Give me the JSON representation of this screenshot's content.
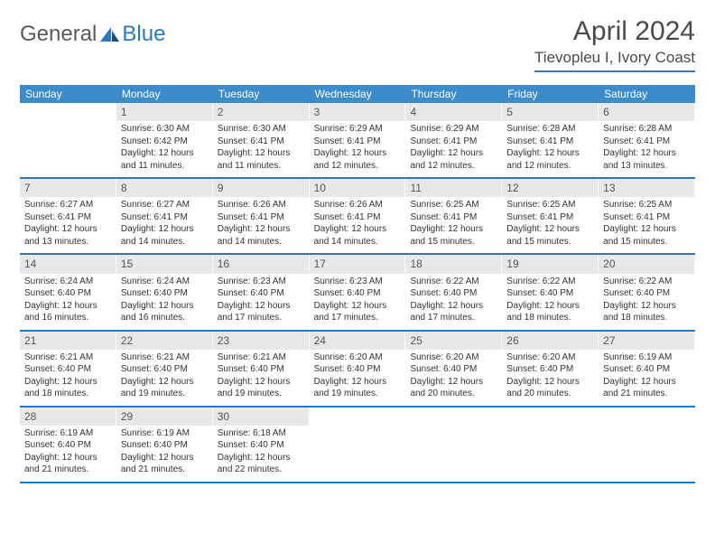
{
  "logo": {
    "general": "General",
    "blue": "Blue"
  },
  "title": "April 2024",
  "location": "Tievopleu I, Ivory Coast",
  "colors": {
    "header_bg": "#3c8ccc",
    "header_text": "#ffffff",
    "daynum_bg": "#e8e8e8",
    "rule": "#2a78bd",
    "text": "#333333"
  },
  "weekdays": [
    "Sunday",
    "Monday",
    "Tuesday",
    "Wednesday",
    "Thursday",
    "Friday",
    "Saturday"
  ],
  "weeks": [
    [
      null,
      {
        "n": "1",
        "sr": "Sunrise: 6:30 AM",
        "ss": "Sunset: 6:42 PM",
        "dl": "Daylight: 12 hours and 11 minutes."
      },
      {
        "n": "2",
        "sr": "Sunrise: 6:30 AM",
        "ss": "Sunset: 6:41 PM",
        "dl": "Daylight: 12 hours and 11 minutes."
      },
      {
        "n": "3",
        "sr": "Sunrise: 6:29 AM",
        "ss": "Sunset: 6:41 PM",
        "dl": "Daylight: 12 hours and 12 minutes."
      },
      {
        "n": "4",
        "sr": "Sunrise: 6:29 AM",
        "ss": "Sunset: 6:41 PM",
        "dl": "Daylight: 12 hours and 12 minutes."
      },
      {
        "n": "5",
        "sr": "Sunrise: 6:28 AM",
        "ss": "Sunset: 6:41 PM",
        "dl": "Daylight: 12 hours and 12 minutes."
      },
      {
        "n": "6",
        "sr": "Sunrise: 6:28 AM",
        "ss": "Sunset: 6:41 PM",
        "dl": "Daylight: 12 hours and 13 minutes."
      }
    ],
    [
      {
        "n": "7",
        "sr": "Sunrise: 6:27 AM",
        "ss": "Sunset: 6:41 PM",
        "dl": "Daylight: 12 hours and 13 minutes."
      },
      {
        "n": "8",
        "sr": "Sunrise: 6:27 AM",
        "ss": "Sunset: 6:41 PM",
        "dl": "Daylight: 12 hours and 14 minutes."
      },
      {
        "n": "9",
        "sr": "Sunrise: 6:26 AM",
        "ss": "Sunset: 6:41 PM",
        "dl": "Daylight: 12 hours and 14 minutes."
      },
      {
        "n": "10",
        "sr": "Sunrise: 6:26 AM",
        "ss": "Sunset: 6:41 PM",
        "dl": "Daylight: 12 hours and 14 minutes."
      },
      {
        "n": "11",
        "sr": "Sunrise: 6:25 AM",
        "ss": "Sunset: 6:41 PM",
        "dl": "Daylight: 12 hours and 15 minutes."
      },
      {
        "n": "12",
        "sr": "Sunrise: 6:25 AM",
        "ss": "Sunset: 6:41 PM",
        "dl": "Daylight: 12 hours and 15 minutes."
      },
      {
        "n": "13",
        "sr": "Sunrise: 6:25 AM",
        "ss": "Sunset: 6:41 PM",
        "dl": "Daylight: 12 hours and 15 minutes."
      }
    ],
    [
      {
        "n": "14",
        "sr": "Sunrise: 6:24 AM",
        "ss": "Sunset: 6:40 PM",
        "dl": "Daylight: 12 hours and 16 minutes."
      },
      {
        "n": "15",
        "sr": "Sunrise: 6:24 AM",
        "ss": "Sunset: 6:40 PM",
        "dl": "Daylight: 12 hours and 16 minutes."
      },
      {
        "n": "16",
        "sr": "Sunrise: 6:23 AM",
        "ss": "Sunset: 6:40 PM",
        "dl": "Daylight: 12 hours and 17 minutes."
      },
      {
        "n": "17",
        "sr": "Sunrise: 6:23 AM",
        "ss": "Sunset: 6:40 PM",
        "dl": "Daylight: 12 hours and 17 minutes."
      },
      {
        "n": "18",
        "sr": "Sunrise: 6:22 AM",
        "ss": "Sunset: 6:40 PM",
        "dl": "Daylight: 12 hours and 17 minutes."
      },
      {
        "n": "19",
        "sr": "Sunrise: 6:22 AM",
        "ss": "Sunset: 6:40 PM",
        "dl": "Daylight: 12 hours and 18 minutes."
      },
      {
        "n": "20",
        "sr": "Sunrise: 6:22 AM",
        "ss": "Sunset: 6:40 PM",
        "dl": "Daylight: 12 hours and 18 minutes."
      }
    ],
    [
      {
        "n": "21",
        "sr": "Sunrise: 6:21 AM",
        "ss": "Sunset: 6:40 PM",
        "dl": "Daylight: 12 hours and 18 minutes."
      },
      {
        "n": "22",
        "sr": "Sunrise: 6:21 AM",
        "ss": "Sunset: 6:40 PM",
        "dl": "Daylight: 12 hours and 19 minutes."
      },
      {
        "n": "23",
        "sr": "Sunrise: 6:21 AM",
        "ss": "Sunset: 6:40 PM",
        "dl": "Daylight: 12 hours and 19 minutes."
      },
      {
        "n": "24",
        "sr": "Sunrise: 6:20 AM",
        "ss": "Sunset: 6:40 PM",
        "dl": "Daylight: 12 hours and 19 minutes."
      },
      {
        "n": "25",
        "sr": "Sunrise: 6:20 AM",
        "ss": "Sunset: 6:40 PM",
        "dl": "Daylight: 12 hours and 20 minutes."
      },
      {
        "n": "26",
        "sr": "Sunrise: 6:20 AM",
        "ss": "Sunset: 6:40 PM",
        "dl": "Daylight: 12 hours and 20 minutes."
      },
      {
        "n": "27",
        "sr": "Sunrise: 6:19 AM",
        "ss": "Sunset: 6:40 PM",
        "dl": "Daylight: 12 hours and 21 minutes."
      }
    ],
    [
      {
        "n": "28",
        "sr": "Sunrise: 6:19 AM",
        "ss": "Sunset: 6:40 PM",
        "dl": "Daylight: 12 hours and 21 minutes."
      },
      {
        "n": "29",
        "sr": "Sunrise: 6:19 AM",
        "ss": "Sunset: 6:40 PM",
        "dl": "Daylight: 12 hours and 21 minutes."
      },
      {
        "n": "30",
        "sr": "Sunrise: 6:18 AM",
        "ss": "Sunset: 6:40 PM",
        "dl": "Daylight: 12 hours and 22 minutes."
      },
      null,
      null,
      null,
      null
    ]
  ]
}
